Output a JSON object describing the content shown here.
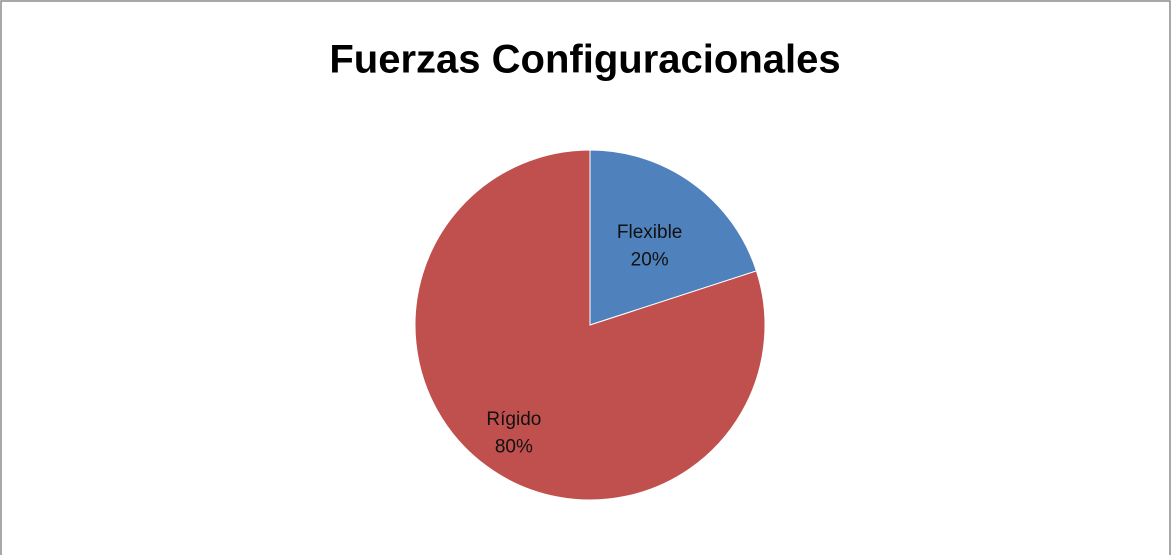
{
  "chart_data": {
    "type": "pie",
    "title": "Fuerzas Configuracionales",
    "categories": [
      "Flexible",
      "Rígido"
    ],
    "values": [
      20,
      80
    ],
    "value_labels": [
      "20%",
      "80%"
    ],
    "colors": [
      "#4f81bd",
      "#c0504d"
    ]
  }
}
